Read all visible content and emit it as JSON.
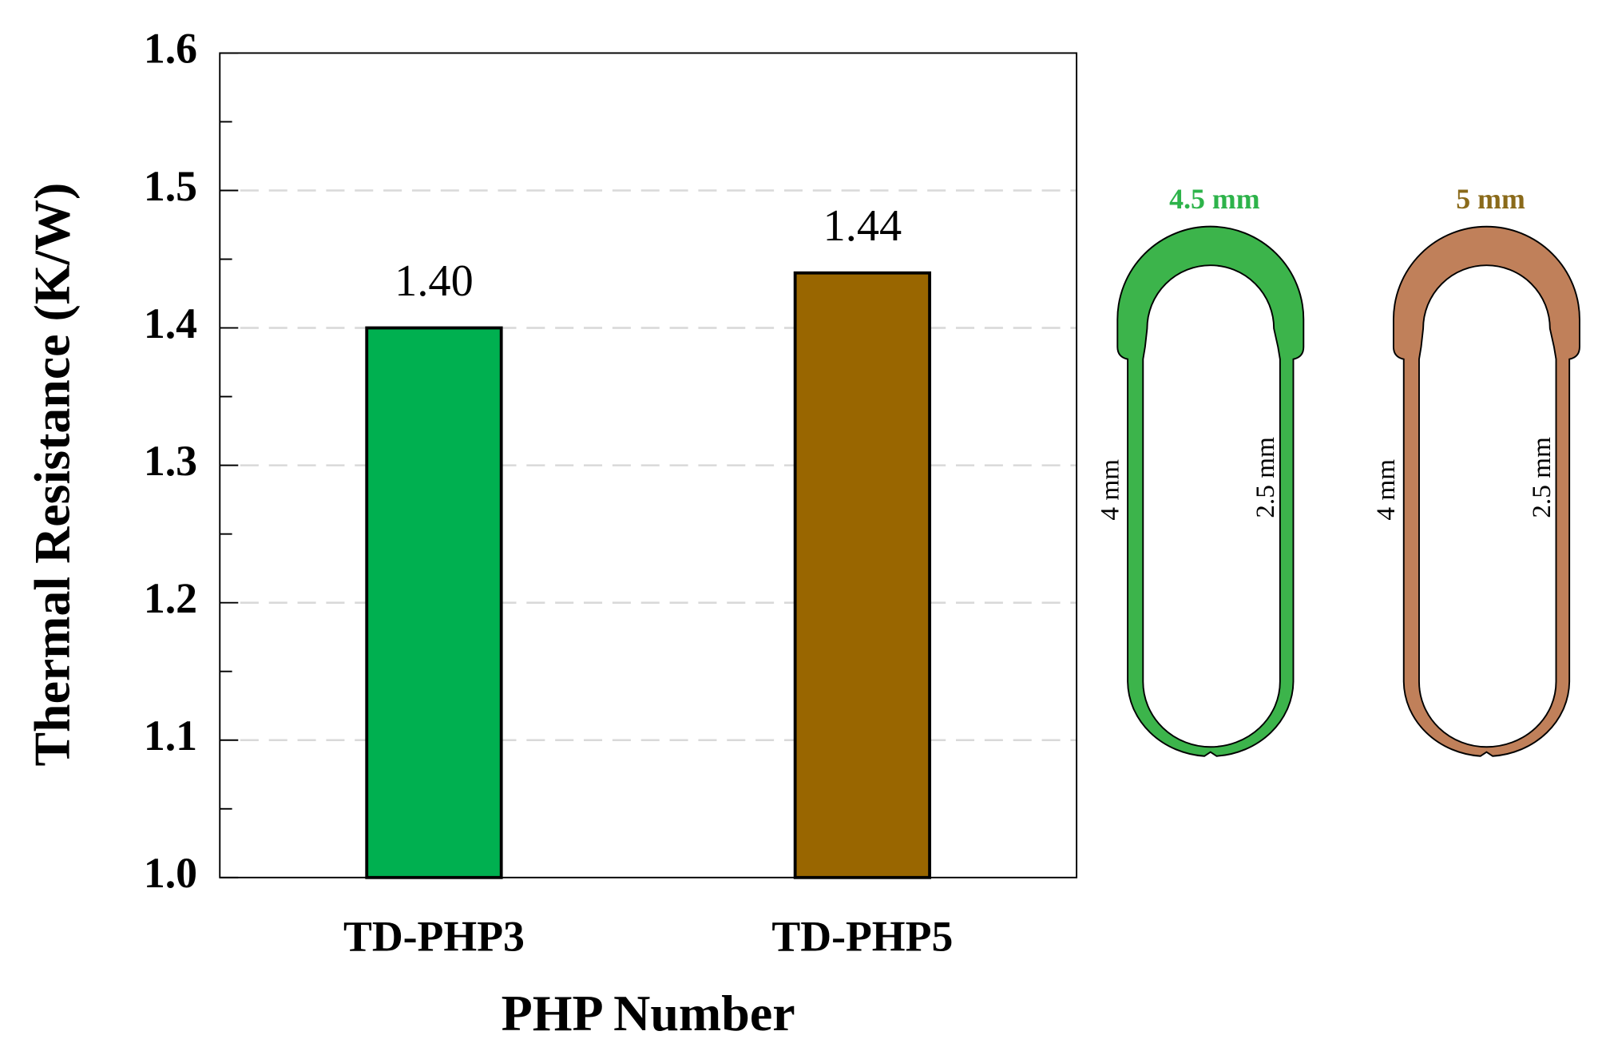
{
  "chart_data": {
    "type": "bar",
    "x_label": "PHP Number",
    "y_label": "Thermal Resistance (K/W)",
    "categories": [
      "TD-PHP3",
      "TD-PHP5"
    ],
    "values": [
      1.4,
      1.44
    ],
    "value_labels": [
      "1.40",
      "1.44"
    ],
    "colors": [
      "#00b050",
      "#996600"
    ],
    "ylim": [
      1.0,
      1.6
    ],
    "yticks": [
      {
        "value": 1.0,
        "label": "1.0"
      },
      1.1,
      1.2,
      1.3,
      1.4,
      1.5,
      1.6
    ],
    "grid": true,
    "diagrams": [
      {
        "title": "4.5 mm",
        "title_color": "#2db34a",
        "fill": "#3cb44b",
        "left_label": "4 mm",
        "right_label": "2.5 mm"
      },
      {
        "title": "5 mm",
        "title_color": "#8a6a1a",
        "fill": "#c0805a",
        "left_label": "4 mm",
        "right_label": "2.5 mm"
      }
    ]
  }
}
